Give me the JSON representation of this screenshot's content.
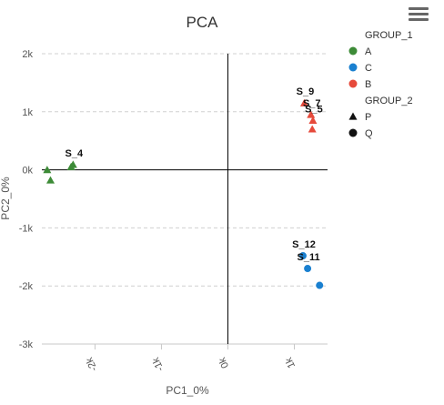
{
  "colors": {
    "A": "#3d8b37",
    "C": "#1a80d0",
    "B": "#e64a3b",
    "shape_legend": "#111111"
  },
  "chart_data": {
    "type": "scatter",
    "title": "PCA",
    "xlabel": "PC1_0%",
    "ylabel": "PC2_0%",
    "xlim": [
      -2800,
      1500
    ],
    "ylim": [
      -3000,
      2000
    ],
    "x_ticks": [
      {
        "value": -2000,
        "label": "-2k"
      },
      {
        "value": -1000,
        "label": "-1k"
      },
      {
        "value": 0,
        "label": "0k"
      },
      {
        "value": 1000,
        "label": "1k"
      }
    ],
    "y_ticks": [
      {
        "value": 2000,
        "label": "2k"
      },
      {
        "value": 1000,
        "label": "1k"
      },
      {
        "value": 0,
        "label": "0k"
      },
      {
        "value": -1000,
        "label": "-1k"
      },
      {
        "value": -2000,
        "label": "-2k"
      },
      {
        "value": -3000,
        "label": "-3k"
      }
    ],
    "grid": true,
    "legend_position": "top-right",
    "legend": [
      {
        "title": "GROUP_1",
        "items": [
          {
            "label": "A",
            "color_key": "A",
            "marker": "circle"
          },
          {
            "label": "C",
            "color_key": "C",
            "marker": "circle"
          },
          {
            "label": "B",
            "color_key": "B",
            "marker": "circle"
          }
        ]
      },
      {
        "title": "GROUP_2",
        "items": [
          {
            "label": "P",
            "color_key": "shape_legend",
            "marker": "triangle"
          },
          {
            "label": "Q",
            "color_key": "shape_legend",
            "marker": "circle"
          }
        ]
      }
    ],
    "points": [
      {
        "x": -2720,
        "y": 0,
        "g1": "A",
        "g2": "P",
        "label": ""
      },
      {
        "x": -2670,
        "y": -180,
        "g1": "A",
        "g2": "P",
        "label": ""
      },
      {
        "x": -2360,
        "y": 50,
        "g1": "A",
        "g2": "P",
        "label": ""
      },
      {
        "x": -2330,
        "y": 90,
        "g1": "A",
        "g2": "P",
        "label": "S_4"
      },
      {
        "x": 1150,
        "y": 1150,
        "g1": "B",
        "g2": "P",
        "label": "S_9"
      },
      {
        "x": 1250,
        "y": 950,
        "g1": "B",
        "g2": "P",
        "label": "S_7"
      },
      {
        "x": 1280,
        "y": 850,
        "g1": "B",
        "g2": "P",
        "label": "S_5"
      },
      {
        "x": 1270,
        "y": 700,
        "g1": "B",
        "g2": "P",
        "label": ""
      },
      {
        "x": 1130,
        "y": -1480,
        "g1": "C",
        "g2": "Q",
        "label": "S_12"
      },
      {
        "x": 1200,
        "y": -1700,
        "g1": "C",
        "g2": "Q",
        "label": "S_11"
      },
      {
        "x": 1380,
        "y": -1990,
        "g1": "C",
        "g2": "Q",
        "label": ""
      }
    ]
  }
}
